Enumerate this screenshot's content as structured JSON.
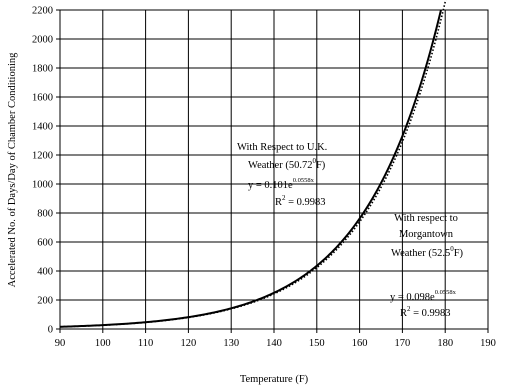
{
  "chart_data": {
    "type": "line",
    "xlabel": "Temperature (F)",
    "ylabel": "Accelerated No. of Days/Day of Chamber Conditioning",
    "xlim": [
      90,
      190
    ],
    "ylim": [
      0,
      2200
    ],
    "xticks": [
      "90",
      "100",
      "110",
      "120",
      "130",
      "140",
      "150",
      "160",
      "170",
      "180",
      "190"
    ],
    "yticks": [
      "0",
      "200",
      "400",
      "600",
      "800",
      "1000",
      "1200",
      "1400",
      "1600",
      "1800",
      "2000",
      "2200"
    ],
    "grid": true,
    "series": [
      {
        "style": "solid",
        "model": {
          "a": 0.101,
          "b": 0.0558
        },
        "x_range": [
          90,
          179.2
        ]
      },
      {
        "style": "dotted",
        "model": {
          "a": 0.098,
          "b": 0.0558
        },
        "x_range": [
          90,
          180.5
        ]
      }
    ],
    "annotations": {
      "uk_line1": "With Respect to U.K.",
      "uk_line2_a": "Weather (50.72",
      "uk_line2_sup": "0",
      "uk_line2_b": "F)",
      "uk_eq_a": "y = 0.101e",
      "uk_eq_sup": "0.0558x",
      "uk_r2_a": "R",
      "uk_r2_sup": "2",
      "uk_r2_b": " = 0.9983",
      "mt_line1": "With respect to",
      "mt_line2": "Morgantown",
      "mt_line3_a": "Weather (52.5",
      "mt_line3_sup": "0",
      "mt_line3_b": "F)",
      "mt_eq_a": "y = 0.098e",
      "mt_eq_sup": "0.0558x",
      "mt_r2_a": "R",
      "mt_r2_sup": "2",
      "mt_r2_b": " = 0.9983"
    }
  }
}
